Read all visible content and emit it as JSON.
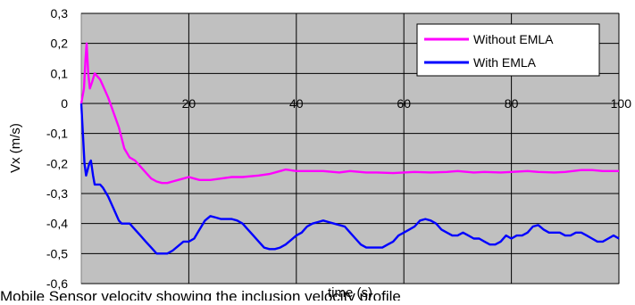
{
  "chart_data": {
    "type": "line",
    "xlabel": "time (s)",
    "ylabel": "Vx (m/s)",
    "xlim": [
      0,
      100
    ],
    "ylim": [
      -0.6,
      0.3
    ],
    "x_ticks": [
      "20",
      "40",
      "60",
      "80",
      "100"
    ],
    "y_ticks": [
      "0,3",
      "0,2",
      "0,1",
      "0",
      "-0,1",
      "-0,2",
      "-0,3",
      "-0,4",
      "-0,5",
      "-0,6"
    ],
    "grid": true,
    "plot_background": "#c0c0c0",
    "legend_position": "top-right",
    "series": [
      {
        "name": "Without EMLA",
        "color": "#ff00ff",
        "points": [
          [
            0,
            0
          ],
          [
            0.5,
            0.05
          ],
          [
            0.8,
            0.15
          ],
          [
            1,
            0.2
          ],
          [
            1.3,
            0.1
          ],
          [
            1.6,
            0.05
          ],
          [
            2,
            0.07
          ],
          [
            2.5,
            0.1
          ],
          [
            3,
            0.09
          ],
          [
            3.5,
            0.08
          ],
          [
            4,
            0.06
          ],
          [
            5,
            0.02
          ],
          [
            6,
            -0.03
          ],
          [
            7,
            -0.08
          ],
          [
            8,
            -0.15
          ],
          [
            9,
            -0.18
          ],
          [
            10,
            -0.19
          ],
          [
            11,
            -0.21
          ],
          [
            12,
            -0.23
          ],
          [
            13,
            -0.25
          ],
          [
            14,
            -0.26
          ],
          [
            15,
            -0.265
          ],
          [
            16,
            -0.265
          ],
          [
            17,
            -0.26
          ],
          [
            18,
            -0.255
          ],
          [
            19,
            -0.25
          ],
          [
            20,
            -0.245
          ],
          [
            21,
            -0.25
          ],
          [
            22,
            -0.255
          ],
          [
            24,
            -0.255
          ],
          [
            26,
            -0.25
          ],
          [
            28,
            -0.245
          ],
          [
            30,
            -0.245
          ],
          [
            33,
            -0.24
          ],
          [
            35,
            -0.235
          ],
          [
            37,
            -0.225
          ],
          [
            38,
            -0.22
          ],
          [
            40,
            -0.225
          ],
          [
            42,
            -0.225
          ],
          [
            45,
            -0.225
          ],
          [
            48,
            -0.23
          ],
          [
            50,
            -0.225
          ],
          [
            53,
            -0.23
          ],
          [
            55,
            -0.23
          ],
          [
            58,
            -0.232
          ],
          [
            60,
            -0.23
          ],
          [
            62,
            -0.228
          ],
          [
            65,
            -0.23
          ],
          [
            68,
            -0.228
          ],
          [
            70,
            -0.225
          ],
          [
            73,
            -0.23
          ],
          [
            75,
            -0.228
          ],
          [
            78,
            -0.23
          ],
          [
            80,
            -0.228
          ],
          [
            83,
            -0.225
          ],
          [
            85,
            -0.228
          ],
          [
            88,
            -0.23
          ],
          [
            90,
            -0.228
          ],
          [
            93,
            -0.222
          ],
          [
            95,
            -0.222
          ],
          [
            97,
            -0.225
          ],
          [
            100,
            -0.225
          ]
        ]
      },
      {
        "name": "With EMLA",
        "color": "#0000ff",
        "points": [
          [
            0,
            0
          ],
          [
            0.3,
            -0.1
          ],
          [
            0.6,
            -0.2
          ],
          [
            0.9,
            -0.24
          ],
          [
            1.2,
            -0.22
          ],
          [
            1.5,
            -0.2
          ],
          [
            1.8,
            -0.19
          ],
          [
            2.2,
            -0.24
          ],
          [
            2.5,
            -0.27
          ],
          [
            3,
            -0.27
          ],
          [
            3.5,
            -0.27
          ],
          [
            4,
            -0.28
          ],
          [
            5,
            -0.31
          ],
          [
            6,
            -0.35
          ],
          [
            7,
            -0.39
          ],
          [
            7.5,
            -0.4
          ],
          [
            8,
            -0.4
          ],
          [
            9,
            -0.4
          ],
          [
            10,
            -0.42
          ],
          [
            11,
            -0.44
          ],
          [
            12,
            -0.46
          ],
          [
            13,
            -0.48
          ],
          [
            14,
            -0.5
          ],
          [
            15,
            -0.5
          ],
          [
            16,
            -0.5
          ],
          [
            17,
            -0.49
          ],
          [
            18,
            -0.475
          ],
          [
            19,
            -0.46
          ],
          [
            20,
            -0.46
          ],
          [
            21,
            -0.45
          ],
          [
            22,
            -0.42
          ],
          [
            23,
            -0.39
          ],
          [
            24,
            -0.375
          ],
          [
            25,
            -0.38
          ],
          [
            26,
            -0.385
          ],
          [
            28,
            -0.385
          ],
          [
            29,
            -0.39
          ],
          [
            30,
            -0.4
          ],
          [
            31,
            -0.42
          ],
          [
            32,
            -0.44
          ],
          [
            33,
            -0.46
          ],
          [
            34,
            -0.48
          ],
          [
            35,
            -0.485
          ],
          [
            36,
            -0.485
          ],
          [
            37,
            -0.48
          ],
          [
            38,
            -0.47
          ],
          [
            39,
            -0.455
          ],
          [
            40,
            -0.44
          ],
          [
            41,
            -0.43
          ],
          [
            42,
            -0.41
          ],
          [
            43,
            -0.4
          ],
          [
            44,
            -0.395
          ],
          [
            45,
            -0.39
          ],
          [
            46,
            -0.395
          ],
          [
            47,
            -0.4
          ],
          [
            48,
            -0.405
          ],
          [
            49,
            -0.41
          ],
          [
            50,
            -0.43
          ],
          [
            51,
            -0.45
          ],
          [
            52,
            -0.47
          ],
          [
            53,
            -0.48
          ],
          [
            54,
            -0.48
          ],
          [
            55,
            -0.48
          ],
          [
            56,
            -0.48
          ],
          [
            57,
            -0.47
          ],
          [
            58,
            -0.46
          ],
          [
            59,
            -0.44
          ],
          [
            60,
            -0.43
          ],
          [
            61,
            -0.42
          ],
          [
            62,
            -0.41
          ],
          [
            63,
            -0.39
          ],
          [
            64,
            -0.385
          ],
          [
            65,
            -0.39
          ],
          [
            66,
            -0.4
          ],
          [
            67,
            -0.42
          ],
          [
            68,
            -0.43
          ],
          [
            69,
            -0.44
          ],
          [
            70,
            -0.44
          ],
          [
            71,
            -0.43
          ],
          [
            72,
            -0.44
          ],
          [
            73,
            -0.45
          ],
          [
            74,
            -0.45
          ],
          [
            75,
            -0.46
          ],
          [
            76,
            -0.47
          ],
          [
            77,
            -0.47
          ],
          [
            78,
            -0.46
          ],
          [
            79,
            -0.44
          ],
          [
            80,
            -0.45
          ],
          [
            81,
            -0.44
          ],
          [
            82,
            -0.44
          ],
          [
            83,
            -0.43
          ],
          [
            84,
            -0.41
          ],
          [
            85,
            -0.405
          ],
          [
            86,
            -0.42
          ],
          [
            87,
            -0.43
          ],
          [
            88,
            -0.43
          ],
          [
            89,
            -0.43
          ],
          [
            90,
            -0.44
          ],
          [
            91,
            -0.44
          ],
          [
            92,
            -0.43
          ],
          [
            93,
            -0.43
          ],
          [
            94,
            -0.44
          ],
          [
            95,
            -0.45
          ],
          [
            96,
            -0.46
          ],
          [
            97,
            -0.46
          ],
          [
            98,
            -0.45
          ],
          [
            99,
            -0.44
          ],
          [
            100,
            -0.45
          ]
        ]
      }
    ]
  },
  "caption": "Mobile Sensor velocity showing the inclusion velocity profile"
}
